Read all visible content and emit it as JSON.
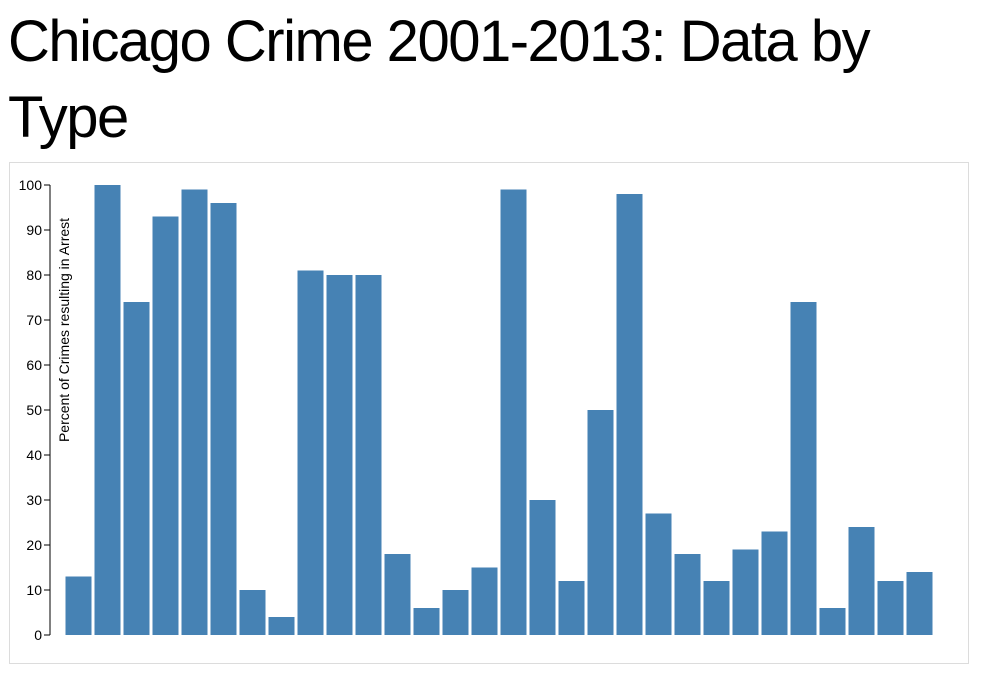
{
  "page": {
    "title": "Chicago Crime 2001-2013: Data by Type"
  },
  "chart_data": {
    "type": "bar",
    "title": "",
    "xlabel": "",
    "ylabel": "Percent of Crimes resulting in Arrest",
    "ylim": [
      0,
      100
    ],
    "yticks": [
      0,
      10,
      20,
      30,
      40,
      50,
      60,
      70,
      80,
      90,
      100
    ],
    "ytick_labels": [
      "0",
      "10",
      "20",
      "30",
      "40",
      "50",
      "60",
      "70",
      "80",
      "90",
      "100"
    ],
    "values": [
      13,
      100,
      74,
      93,
      99,
      96,
      10,
      4,
      81,
      80,
      80,
      18,
      6,
      10,
      15,
      99,
      30,
      12,
      50,
      98,
      27,
      18,
      12,
      19,
      23,
      74,
      6,
      24,
      12,
      14
    ],
    "bar_color": "#4682b4",
    "grid": false,
    "legend": "none"
  }
}
